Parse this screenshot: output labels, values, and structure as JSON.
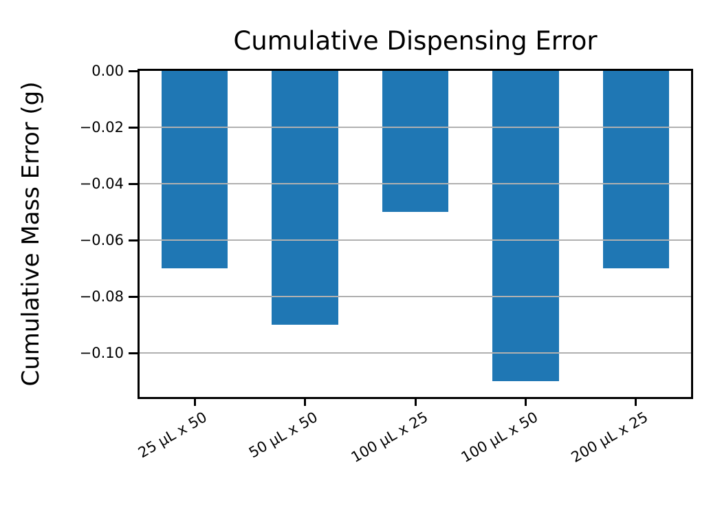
{
  "chart_data": {
    "type": "bar",
    "title": "Cumulative Dispensing Error",
    "ylabel": "Cumulative Mass Error (g)",
    "xlabel": "",
    "categories": [
      "25 µL x 50",
      "50 µL x 50",
      "100 µL x 25",
      "100 µL x 50",
      "200 µL x 25"
    ],
    "values": [
      -0.07,
      -0.09,
      -0.05,
      -0.11,
      -0.07
    ],
    "ylim": [
      -0.1155,
      0
    ],
    "yticks": [
      0,
      -0.02,
      -0.04,
      -0.06,
      -0.08,
      -0.1
    ],
    "ytick_labels": [
      "0.00",
      "−0.02",
      "−0.04",
      "−0.06",
      "−0.08",
      "−0.10"
    ],
    "bar_color": "#1f77b4",
    "grid_color": "#b0b0b0",
    "grid": "horizontal-above-bars",
    "legend_position": "none",
    "x_tick_rotation_deg": 30,
    "bar_width_fraction": 0.6
  }
}
